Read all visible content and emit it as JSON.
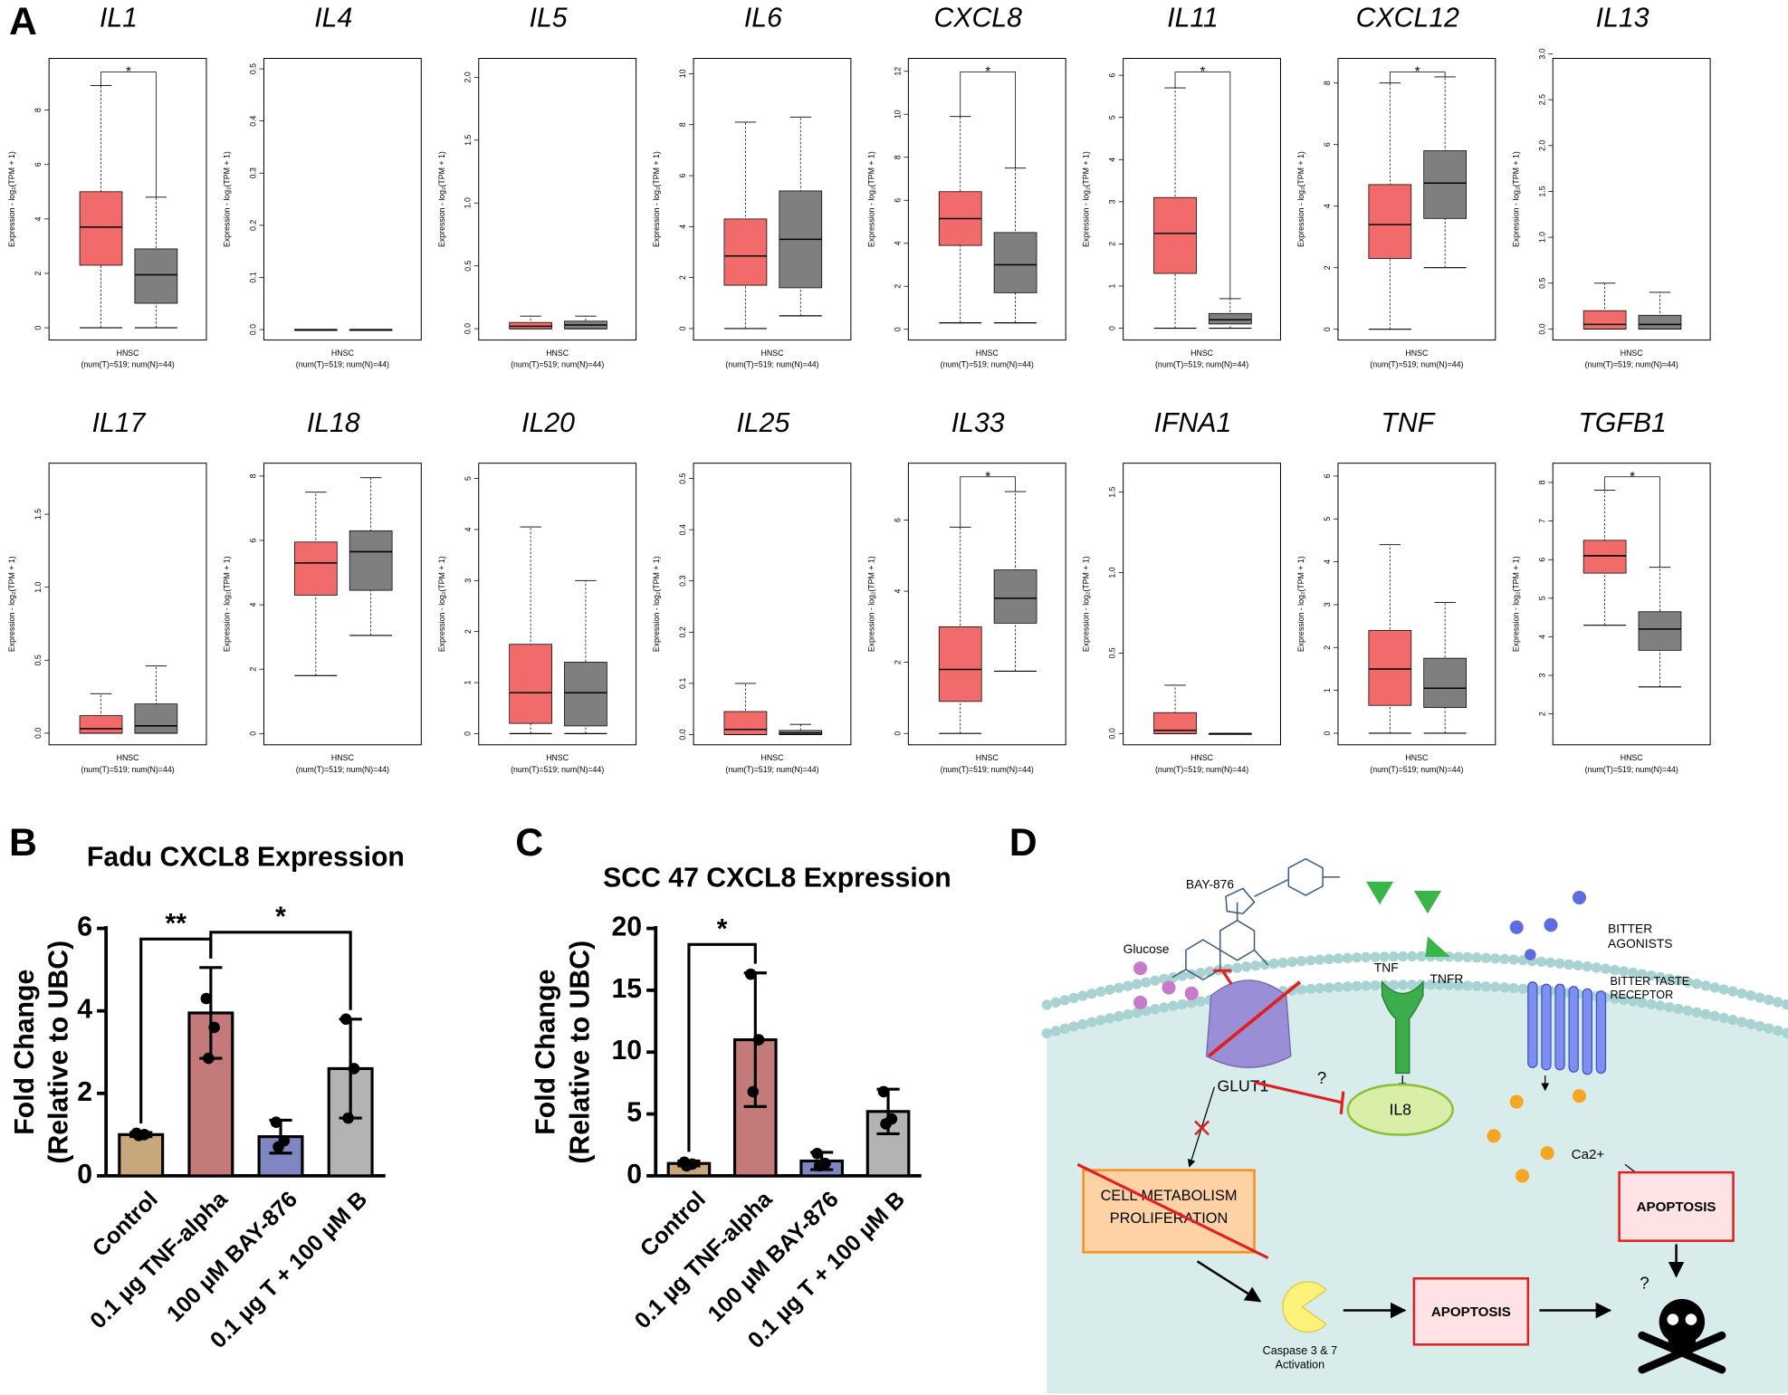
{
  "panels": [
    "A",
    "B",
    "C",
    "D"
  ],
  "chart_data": [
    {
      "type": "box",
      "title": "IL1",
      "ylabel": "Expression - log₂(TPM + 1)",
      "xlabel": "HNSC",
      "note": "(num(T)=519; num(N)=44)",
      "ylim": [
        -0.45,
        9.9
      ],
      "yticks": [
        0,
        2,
        4,
        6,
        8
      ],
      "significance": "*",
      "boxes": [
        {
          "color": "#f26b6b",
          "min": 0,
          "q1": 2.3,
          "median": 3.7,
          "q3": 5.0,
          "max": 8.9
        },
        {
          "color": "#7f7f7f",
          "min": 0,
          "q1": 0.9,
          "median": 1.95,
          "q3": 2.9,
          "max": 4.8
        }
      ]
    },
    {
      "type": "box",
      "title": "IL4",
      "ylabel": "Expression - log₂(TPM + 1)",
      "xlabel": "HNSC",
      "note": "(num(T)=519; num(N)=44)",
      "ylim": [
        -0.02,
        0.52
      ],
      "yticks": [
        {
          "value": 0,
          "label": "0.0"
        },
        0.1,
        0.2,
        0.3,
        0.4,
        0.5
      ],
      "boxes": [
        {
          "color": "#f26b6b",
          "min": 0,
          "q1": 0,
          "median": 0,
          "q3": 0,
          "max": 0
        },
        {
          "color": "#7f7f7f",
          "min": 0,
          "q1": 0,
          "median": 0,
          "q3": 0,
          "max": 0
        }
      ]
    },
    {
      "type": "box",
      "title": "IL5",
      "ylabel": "Expression - log₂(TPM + 1)",
      "xlabel": "HNSC",
      "note": "(num(T)=519; num(N)=44)",
      "ylim": [
        -0.09,
        2.15
      ],
      "yticks": [
        {
          "value": 0,
          "label": "0.0"
        },
        0.5,
        {
          "value": 1,
          "label": "1.0"
        },
        1.5,
        {
          "value": 2,
          "label": "2.0"
        }
      ],
      "boxes": [
        {
          "color": "#f26b6b",
          "min": 0,
          "q1": 0,
          "median": 0.02,
          "q3": 0.05,
          "max": 0.1
        },
        {
          "color": "#7f7f7f",
          "min": 0,
          "q1": 0,
          "median": 0.03,
          "q3": 0.06,
          "max": 0.1
        }
      ]
    },
    {
      "type": "box",
      "title": "IL6",
      "ylabel": "Expression - log₂(TPM + 1)",
      "xlabel": "HNSC",
      "note": "(num(T)=519; num(N)=44)",
      "ylim": [
        -0.45,
        10.6
      ],
      "yticks": [
        0,
        2,
        4,
        6,
        8,
        10
      ],
      "boxes": [
        {
          "color": "#f26b6b",
          "min": 0,
          "q1": 1.7,
          "median": 2.85,
          "q3": 4.3,
          "max": 8.1
        },
        {
          "color": "#7f7f7f",
          "min": 0.5,
          "q1": 1.6,
          "median": 3.5,
          "q3": 5.4,
          "max": 8.3
        }
      ]
    },
    {
      "type": "box",
      "title": "CXCL8",
      "ylabel": "Expression - log₂(TPM + 1)",
      "xlabel": "HNSC",
      "note": "(num(T)=519; num(N)=44)",
      "ylim": [
        -0.5,
        12.6
      ],
      "yticks": [
        0,
        2,
        4,
        6,
        8,
        10,
        12
      ],
      "significance": "*",
      "boxes": [
        {
          "color": "#f26b6b",
          "min": 0.3,
          "q1": 3.9,
          "median": 5.15,
          "q3": 6.4,
          "max": 9.9
        },
        {
          "color": "#7f7f7f",
          "min": 0.3,
          "q1": 1.7,
          "median": 3.0,
          "q3": 4.5,
          "max": 7.5
        }
      ]
    },
    {
      "type": "box",
      "title": "IL11",
      "ylabel": "Expression - log₂(TPM + 1)",
      "xlabel": "HNSC",
      "note": "(num(T)=519; num(N)=44)",
      "ylim": [
        -0.28,
        6.4
      ],
      "yticks": [
        0,
        1,
        2,
        3,
        4,
        5,
        6
      ],
      "significance": "*",
      "boxes": [
        {
          "color": "#f26b6b",
          "min": 0,
          "q1": 1.3,
          "median": 2.25,
          "q3": 3.1,
          "max": 5.7
        },
        {
          "color": "#7f7f7f",
          "min": 0,
          "q1": 0.1,
          "median": 0.2,
          "q3": 0.35,
          "max": 0.7
        }
      ]
    },
    {
      "type": "box",
      "title": "CXCL12",
      "ylabel": "Expression - log₂(TPM + 1)",
      "xlabel": "HNSC",
      "note": "(num(T)=519; num(N)=44)",
      "ylim": [
        -0.35,
        8.8
      ],
      "yticks": [
        0,
        2,
        4,
        6,
        8
      ],
      "significance": "*",
      "boxes": [
        {
          "color": "#f26b6b",
          "min": 0,
          "q1": 2.3,
          "median": 3.4,
          "q3": 4.7,
          "max": 8.0
        },
        {
          "color": "#7f7f7f",
          "min": 2.0,
          "q1": 3.6,
          "median": 4.75,
          "q3": 5.8,
          "max": 8.2
        }
      ]
    },
    {
      "type": "box",
      "title": "IL13",
      "ylabel": "Expression - log₂(TPM + 1)",
      "xlabel": "HNSC",
      "note": "(num(T)=519; num(N)=44)",
      "ylim": [
        -0.12,
        2.95
      ],
      "yticks": [
        {
          "value": 0,
          "label": "0.0"
        },
        0.5,
        {
          "value": 1,
          "label": "1.0"
        },
        1.5,
        {
          "value": 2,
          "label": "2.0"
        },
        2.5,
        {
          "value": 3,
          "label": "3.0"
        }
      ],
      "boxes": [
        {
          "color": "#f26b6b",
          "min": 0,
          "q1": 0,
          "median": 0.05,
          "q3": 0.2,
          "max": 0.5
        },
        {
          "color": "#7f7f7f",
          "min": 0,
          "q1": 0,
          "median": 0.05,
          "q3": 0.15,
          "max": 0.4
        }
      ]
    },
    {
      "type": "box",
      "title": "IL17",
      "ylabel": "Expression - log₂(TPM + 1)",
      "xlabel": "HNSC",
      "note": "(num(T)=519; num(N)=44)",
      "ylim": [
        -0.08,
        1.85
      ],
      "yticks": [
        {
          "value": 0,
          "label": "0.0"
        },
        0.5,
        {
          "value": 1,
          "label": "1.0"
        },
        1.5
      ],
      "boxes": [
        {
          "color": "#f26b6b",
          "min": 0,
          "q1": 0,
          "median": 0.03,
          "q3": 0.12,
          "max": 0.27
        },
        {
          "color": "#7f7f7f",
          "min": 0,
          "q1": 0,
          "median": 0.05,
          "q3": 0.2,
          "max": 0.46
        }
      ]
    },
    {
      "type": "box",
      "title": "IL18",
      "ylabel": "Expression - log₂(TPM + 1)",
      "xlabel": "HNSC",
      "note": "(num(T)=519; num(N)=44)",
      "ylim": [
        -0.35,
        8.4
      ],
      "yticks": [
        0,
        2,
        4,
        6,
        8
      ],
      "boxes": [
        {
          "color": "#f26b6b",
          "min": 1.8,
          "q1": 4.3,
          "median": 5.3,
          "q3": 5.95,
          "max": 7.5
        },
        {
          "color": "#7f7f7f",
          "min": 3.05,
          "q1": 4.45,
          "median": 5.65,
          "q3": 6.3,
          "max": 7.95
        }
      ]
    },
    {
      "type": "box",
      "title": "IL20",
      "ylabel": "Expression - log₂(TPM + 1)",
      "xlabel": "HNSC",
      "note": "(num(T)=519; num(N)=44)",
      "ylim": [
        -0.22,
        5.3
      ],
      "yticks": [
        0,
        1,
        2,
        3,
        4,
        5
      ],
      "boxes": [
        {
          "color": "#f26b6b",
          "min": 0,
          "q1": 0.2,
          "median": 0.8,
          "q3": 1.75,
          "max": 4.05
        },
        {
          "color": "#7f7f7f",
          "min": 0,
          "q1": 0.15,
          "median": 0.8,
          "q3": 1.4,
          "max": 3.0
        }
      ]
    },
    {
      "type": "box",
      "title": "IL25",
      "ylabel": "Expression - log₂(TPM + 1)",
      "xlabel": "HNSC",
      "note": "(num(T)=519; num(N)=44)",
      "ylim": [
        -0.02,
        0.53
      ],
      "yticks": [
        {
          "value": 0,
          "label": "0.0"
        },
        0.1,
        0.2,
        0.3,
        0.4,
        0.5
      ],
      "boxes": [
        {
          "color": "#f26b6b",
          "min": 0,
          "q1": 0,
          "median": 0.01,
          "q3": 0.045,
          "max": 0.1
        },
        {
          "color": "#7f7f7f",
          "min": 0,
          "q1": 0,
          "median": 0.003,
          "q3": 0.008,
          "max": 0.02
        }
      ]
    },
    {
      "type": "box",
      "title": "IL33",
      "ylabel": "Expression - log₂(TPM + 1)",
      "xlabel": "HNSC",
      "note": "(num(T)=519; num(N)=44)",
      "ylim": [
        -0.32,
        7.6
      ],
      "yticks": [
        0,
        2,
        4,
        6
      ],
      "significance": "*",
      "boxes": [
        {
          "color": "#f26b6b",
          "min": 0,
          "q1": 0.9,
          "median": 1.8,
          "q3": 3.0,
          "max": 5.8
        },
        {
          "color": "#7f7f7f",
          "min": 1.75,
          "q1": 3.1,
          "median": 3.8,
          "q3": 4.6,
          "max": 6.8
        }
      ]
    },
    {
      "type": "box",
      "title": "IFNA1",
      "ylabel": "Expression - log₂(TPM + 1)",
      "xlabel": "HNSC",
      "note": "(num(T)=519; num(N)=44)",
      "ylim": [
        -0.07,
        1.68
      ],
      "yticks": [
        {
          "value": 0,
          "label": "0.0"
        },
        0.5,
        {
          "value": 1,
          "label": "1.0"
        },
        1.5
      ],
      "boxes": [
        {
          "color": "#f26b6b",
          "min": 0,
          "q1": 0,
          "median": 0.02,
          "q3": 0.13,
          "max": 0.3
        },
        {
          "color": "#7f7f7f",
          "min": 0,
          "q1": 0,
          "median": 0,
          "q3": 0,
          "max": 0
        }
      ]
    },
    {
      "type": "box",
      "title": "TNF",
      "ylabel": "Expression - log₂(TPM + 1)",
      "xlabel": "HNSC",
      "note": "(num(T)=519; num(N)=44)",
      "ylim": [
        -0.27,
        6.3
      ],
      "yticks": [
        0,
        1,
        2,
        3,
        4,
        5,
        6
      ],
      "boxes": [
        {
          "color": "#f26b6b",
          "min": 0,
          "q1": 0.65,
          "median": 1.5,
          "q3": 2.4,
          "max": 4.4
        },
        {
          "color": "#7f7f7f",
          "min": 0,
          "q1": 0.6,
          "median": 1.05,
          "q3": 1.75,
          "max": 3.05
        }
      ]
    },
    {
      "type": "box",
      "title": "TGFB1",
      "ylabel": "Expression - log₂(TPM + 1)",
      "xlabel": "HNSC",
      "note": "(num(T)=519; num(N)=44)",
      "ylim": [
        1.2,
        8.5
      ],
      "yticks": [
        2,
        3,
        4,
        5,
        6,
        7,
        8
      ],
      "significance": "*",
      "boxes": [
        {
          "color": "#f26b6b",
          "min": 4.3,
          "q1": 5.65,
          "median": 6.1,
          "q3": 6.5,
          "max": 7.8
        },
        {
          "color": "#7f7f7f",
          "min": 2.7,
          "q1": 3.65,
          "median": 4.2,
          "q3": 4.65,
          "max": 5.8
        }
      ]
    },
    {
      "type": "bar",
      "title": "Fadu CXCL8 Expression",
      "ylabel": [
        "Fold Change",
        "(Relative to UBC)"
      ],
      "categories": [
        "Control",
        "0.1 µg TNF-alpha",
        "100 µM BAY-876",
        "0.1 µg T + 100 µM B"
      ],
      "values": [
        1.0,
        3.95,
        0.95,
        2.6
      ],
      "errors": [
        0.05,
        1.1,
        0.4,
        1.2
      ],
      "points": [
        [
          1.03,
          1.0,
          0.98
        ],
        [
          4.3,
          3.6,
          2.85
        ],
        [
          1.3,
          0.85,
          0.7
        ],
        [
          3.8,
          2.6,
          1.4
        ]
      ],
      "colors": [
        "#c9a77c",
        "#c47a78",
        "#7f86c2",
        "#b3b3b3"
      ],
      "ylim": [
        0,
        6
      ],
      "yticks": [
        0,
        2,
        4,
        6
      ],
      "brackets": [
        {
          "between": [
            0,
            1
          ],
          "label": "**"
        },
        {
          "between": [
            1,
            3
          ],
          "label": "*"
        }
      ]
    },
    {
      "type": "bar",
      "title": "SCC 47 CXCL8 Expression",
      "ylabel": [
        "Fold Change",
        "(Relative to UBC)"
      ],
      "categories": [
        "Control",
        "0.1 µg TNF-alpha",
        "100 µM BAY-876",
        "0.1 µg T + 100 µM B"
      ],
      "values": [
        1.0,
        11.0,
        1.2,
        5.2
      ],
      "errors": [
        0.2,
        5.4,
        0.7,
        1.8
      ],
      "points": [
        [
          1.1,
          0.95,
          0.8
        ],
        [
          16.3,
          11.0,
          6.8
        ],
        [
          1.8,
          1.0,
          0.8
        ],
        [
          6.8,
          4.6,
          4.2
        ]
      ],
      "colors": [
        "#c9a77c",
        "#c47a78",
        "#7f86c2",
        "#b3b3b3"
      ],
      "ylim": [
        0,
        20
      ],
      "yticks": [
        0,
        5,
        10,
        15,
        20
      ],
      "brackets": [
        {
          "between": [
            0,
            1
          ],
          "label": "*"
        }
      ]
    }
  ],
  "diagram": {
    "bay876": "BAY-876",
    "glucose": "Glucose",
    "glut1": "GLUT1",
    "tnf": "TNF",
    "tnfr": "TNFR",
    "agonists": [
      "BITTER",
      "AGONISTS"
    ],
    "receptor": [
      "BITTER TASTE",
      "RECEPTOR"
    ],
    "il8": "IL8",
    "question1": "?",
    "ca": "Ca2+",
    "metabolism": [
      "CELL METABOLISM",
      "PROLIFERATION"
    ],
    "apoptosis1": "APOPTOSIS",
    "apoptosis2": "APOPTOSIS",
    "caspase": [
      "Caspase 3 & 7",
      "Activation"
    ],
    "question2": "?"
  }
}
